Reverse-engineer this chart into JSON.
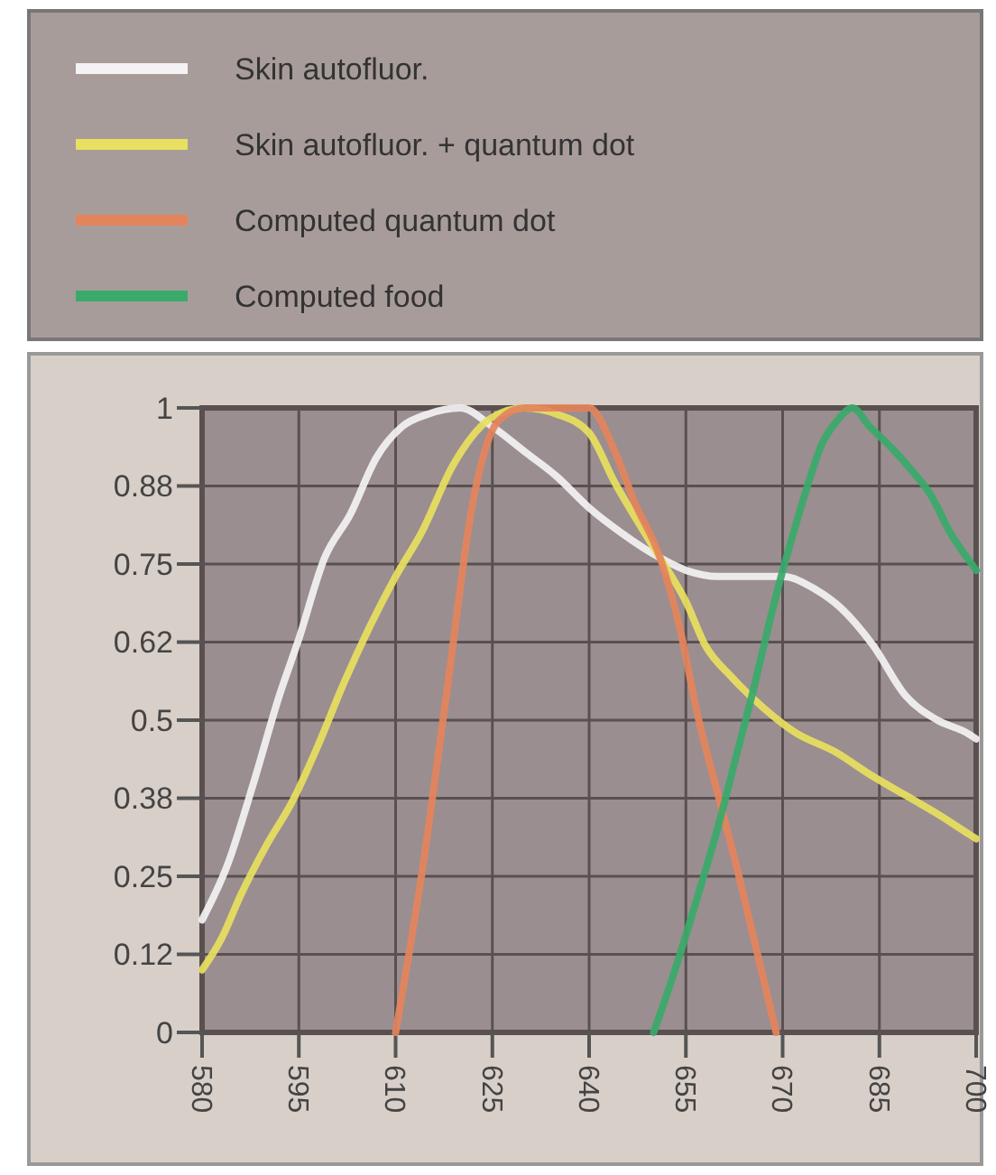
{
  "chart_data": {
    "type": "line",
    "xlim": [
      580,
      700
    ],
    "xticks": [
      580,
      595,
      610,
      625,
      640,
      655,
      670,
      685,
      700
    ],
    "ylim": [
      0,
      1
    ],
    "yticks": [
      0,
      {
        "value": 0.125,
        "label": "0.12"
      },
      0.25,
      {
        "value": 0.375,
        "label": "0.38"
      },
      0.5,
      {
        "value": 0.625,
        "label": "0.62"
      },
      0.75,
      {
        "value": 0.875,
        "label": "0.88"
      },
      1
    ],
    "grid": true,
    "legend": "top",
    "series": [
      {
        "name": "Skin autofluor.",
        "color": "#f4f2f4",
        "x": [
          580,
          584,
          588,
          592,
          595,
          599,
          603,
          607,
          611,
          615,
          620,
          625,
          630,
          635,
          640,
          645,
          651,
          655,
          660,
          665,
          670,
          675,
          679,
          684,
          689,
          694,
          698.5,
          700
        ],
        "values": [
          0.18,
          0.27,
          0.4,
          0.54,
          0.63,
          0.76,
          0.83,
          0.92,
          0.97,
          0.99,
          1,
          0.97,
          0.93,
          0.89,
          0.84,
          0.8,
          0.76,
          0.74,
          0.73,
          0.73,
          0.73,
          0.71,
          0.68,
          0.62,
          0.54,
          0.5,
          0.48,
          0.47
        ]
      },
      {
        "name": "Skin autofluor. + quantum dot",
        "color": "#e8e060",
        "x": [
          580,
          583,
          586,
          590,
          594,
          598,
          602,
          606,
          610,
          614,
          619,
          625,
          630,
          635,
          640,
          644,
          648,
          651,
          655,
          658,
          662,
          667,
          672,
          678,
          684,
          689,
          694,
          698.5,
          700
        ],
        "values": [
          0.1,
          0.15,
          0.22,
          0.3,
          0.37,
          0.46,
          0.56,
          0.65,
          0.73,
          0.8,
          0.91,
          0.985,
          1,
          0.99,
          0.96,
          0.88,
          0.81,
          0.76,
          0.69,
          0.62,
          0.57,
          0.52,
          0.48,
          0.45,
          0.41,
          0.38,
          0.35,
          0.32,
          0.31
        ]
      },
      {
        "name": "Computed quantum dot",
        "color": "#e4845c",
        "x": [
          610,
          614,
          618,
          622,
          626,
          630,
          635,
          640,
          644,
          647,
          651,
          654,
          657,
          660,
          663,
          666,
          669
        ],
        "values": [
          0,
          0.25,
          0.55,
          0.85,
          0.98,
          1,
          1,
          1,
          0.93,
          0.85,
          0.76,
          0.65,
          0.5,
          0.38,
          0.26,
          0.13,
          0
        ]
      },
      {
        "name": "Computed food",
        "color": "#3aaa6a",
        "x": [
          650,
          653,
          656.6,
          660,
          663,
          665.5,
          667.8,
          669.5,
          671.4,
          674,
          676,
          678.5,
          680.8,
          683.5,
          686.5,
          690,
          693,
          696,
          699.3,
          700
        ],
        "values": [
          0,
          0.09,
          0.21,
          0.33,
          0.45,
          0.55,
          0.65,
          0.72,
          0.79,
          0.88,
          0.94,
          0.98,
          1,
          0.97,
          0.94,
          0.9,
          0.86,
          0.8,
          0.75,
          0.74
        ]
      }
    ]
  }
}
